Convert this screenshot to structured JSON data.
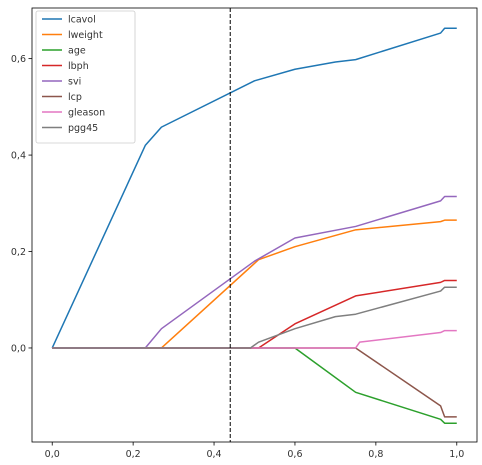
{
  "chart_data": {
    "type": "line",
    "title": "",
    "xlabel": "",
    "ylabel": "",
    "xlim": [
      -0.05,
      1.05
    ],
    "ylim": [
      -0.195,
      0.705
    ],
    "xticks": [
      0.0,
      0.2,
      0.4,
      0.6,
      0.8,
      1.0
    ],
    "xtick_labels": [
      "0,0",
      "0,2",
      "0,4",
      "0,6",
      "0,8",
      "1,0"
    ],
    "yticks": [
      0.0,
      0.2,
      0.4,
      0.6
    ],
    "ytick_labels": [
      "0,0",
      "0,2",
      "0,4",
      "0,6"
    ],
    "grid": false,
    "legend_position": "top-left",
    "vline": {
      "x": 0.44,
      "style": "dashed",
      "color": "#000000"
    },
    "series": [
      {
        "name": "lcavol",
        "color": "#1f77b4",
        "points": [
          [
            0,
            0
          ],
          [
            0.23,
            0.42
          ],
          [
            0.27,
            0.458
          ],
          [
            0.5,
            0.554
          ],
          [
            0.6,
            0.578
          ],
          [
            0.7,
            0.593
          ],
          [
            0.75,
            0.598
          ],
          [
            0.96,
            0.653
          ],
          [
            0.97,
            0.663
          ],
          [
            1.0,
            0.663
          ]
        ]
      },
      {
        "name": "lweight",
        "color": "#ff7f0e",
        "points": [
          [
            0,
            0
          ],
          [
            0.27,
            0
          ],
          [
            0.51,
            0.183
          ],
          [
            0.6,
            0.21
          ],
          [
            0.75,
            0.245
          ],
          [
            0.96,
            0.262
          ],
          [
            0.97,
            0.265
          ],
          [
            1.0,
            0.265
          ]
        ]
      },
      {
        "name": "age",
        "color": "#2ca02c",
        "points": [
          [
            0,
            0
          ],
          [
            0.6,
            0
          ],
          [
            0.75,
            -0.092
          ],
          [
            0.96,
            -0.148
          ],
          [
            0.97,
            -0.156
          ],
          [
            1.0,
            -0.156
          ]
        ]
      },
      {
        "name": "lbph",
        "color": "#d62728",
        "points": [
          [
            0,
            0
          ],
          [
            0.51,
            0
          ],
          [
            0.6,
            0.05
          ],
          [
            0.75,
            0.108
          ],
          [
            0.96,
            0.136
          ],
          [
            0.97,
            0.14
          ],
          [
            1.0,
            0.14
          ]
        ]
      },
      {
        "name": "svi",
        "color": "#9467bd",
        "points": [
          [
            0,
            0
          ],
          [
            0.23,
            0
          ],
          [
            0.27,
            0.04
          ],
          [
            0.5,
            0.18
          ],
          [
            0.6,
            0.228
          ],
          [
            0.75,
            0.252
          ],
          [
            0.96,
            0.305
          ],
          [
            0.97,
            0.314
          ],
          [
            1.0,
            0.314
          ]
        ]
      },
      {
        "name": "lcp",
        "color": "#8c564b",
        "points": [
          [
            0,
            0
          ],
          [
            0.75,
            0
          ],
          [
            0.96,
            -0.12
          ],
          [
            0.97,
            -0.143
          ],
          [
            1.0,
            -0.143
          ]
        ]
      },
      {
        "name": "gleason",
        "color": "#e377c2",
        "points": [
          [
            0,
            0
          ],
          [
            0.75,
            0
          ],
          [
            0.76,
            0.012
          ],
          [
            0.96,
            0.032
          ],
          [
            0.97,
            0.036
          ],
          [
            1.0,
            0.036
          ]
        ]
      },
      {
        "name": "pgg45",
        "color": "#7f7f7f",
        "points": [
          [
            0,
            0
          ],
          [
            0.49,
            0
          ],
          [
            0.51,
            0.012
          ],
          [
            0.6,
            0.04
          ],
          [
            0.7,
            0.065
          ],
          [
            0.75,
            0.07
          ],
          [
            0.96,
            0.118
          ],
          [
            0.97,
            0.126
          ],
          [
            1.0,
            0.126
          ]
        ]
      }
    ]
  }
}
